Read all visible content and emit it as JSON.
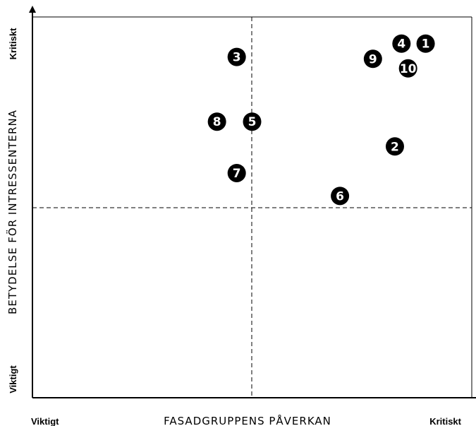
{
  "chart_data": {
    "type": "scatter",
    "title": "",
    "xlabel": "FASADGRUPPENS PÅVERKAN",
    "ylabel": "BETYDELSE FÖR INTRESSENTERNA",
    "x_axis": {
      "low_label": "Viktigt",
      "high_label": "Kritiskt"
    },
    "y_axis": {
      "low_label": "Viktigt",
      "high_label": "Kritiskt"
    },
    "xlim": [
      0,
      10
    ],
    "ylim": [
      0,
      10
    ],
    "quadrant_divider": {
      "x": 5,
      "y": 5
    },
    "grid": false,
    "points": [
      {
        "label": "1",
        "x": 8.95,
        "y": 9.3
      },
      {
        "label": "2",
        "x": 8.25,
        "y": 6.6
      },
      {
        "label": "3",
        "x": 4.65,
        "y": 8.95
      },
      {
        "label": "4",
        "x": 8.4,
        "y": 9.3
      },
      {
        "label": "5",
        "x": 5.0,
        "y": 7.25
      },
      {
        "label": "6",
        "x": 7.0,
        "y": 5.3
      },
      {
        "label": "7",
        "x": 4.65,
        "y": 5.9
      },
      {
        "label": "8",
        "x": 4.2,
        "y": 7.25
      },
      {
        "label": "9",
        "x": 7.75,
        "y": 8.9
      },
      {
        "label": "10",
        "x": 8.55,
        "y": 8.65
      }
    ]
  }
}
